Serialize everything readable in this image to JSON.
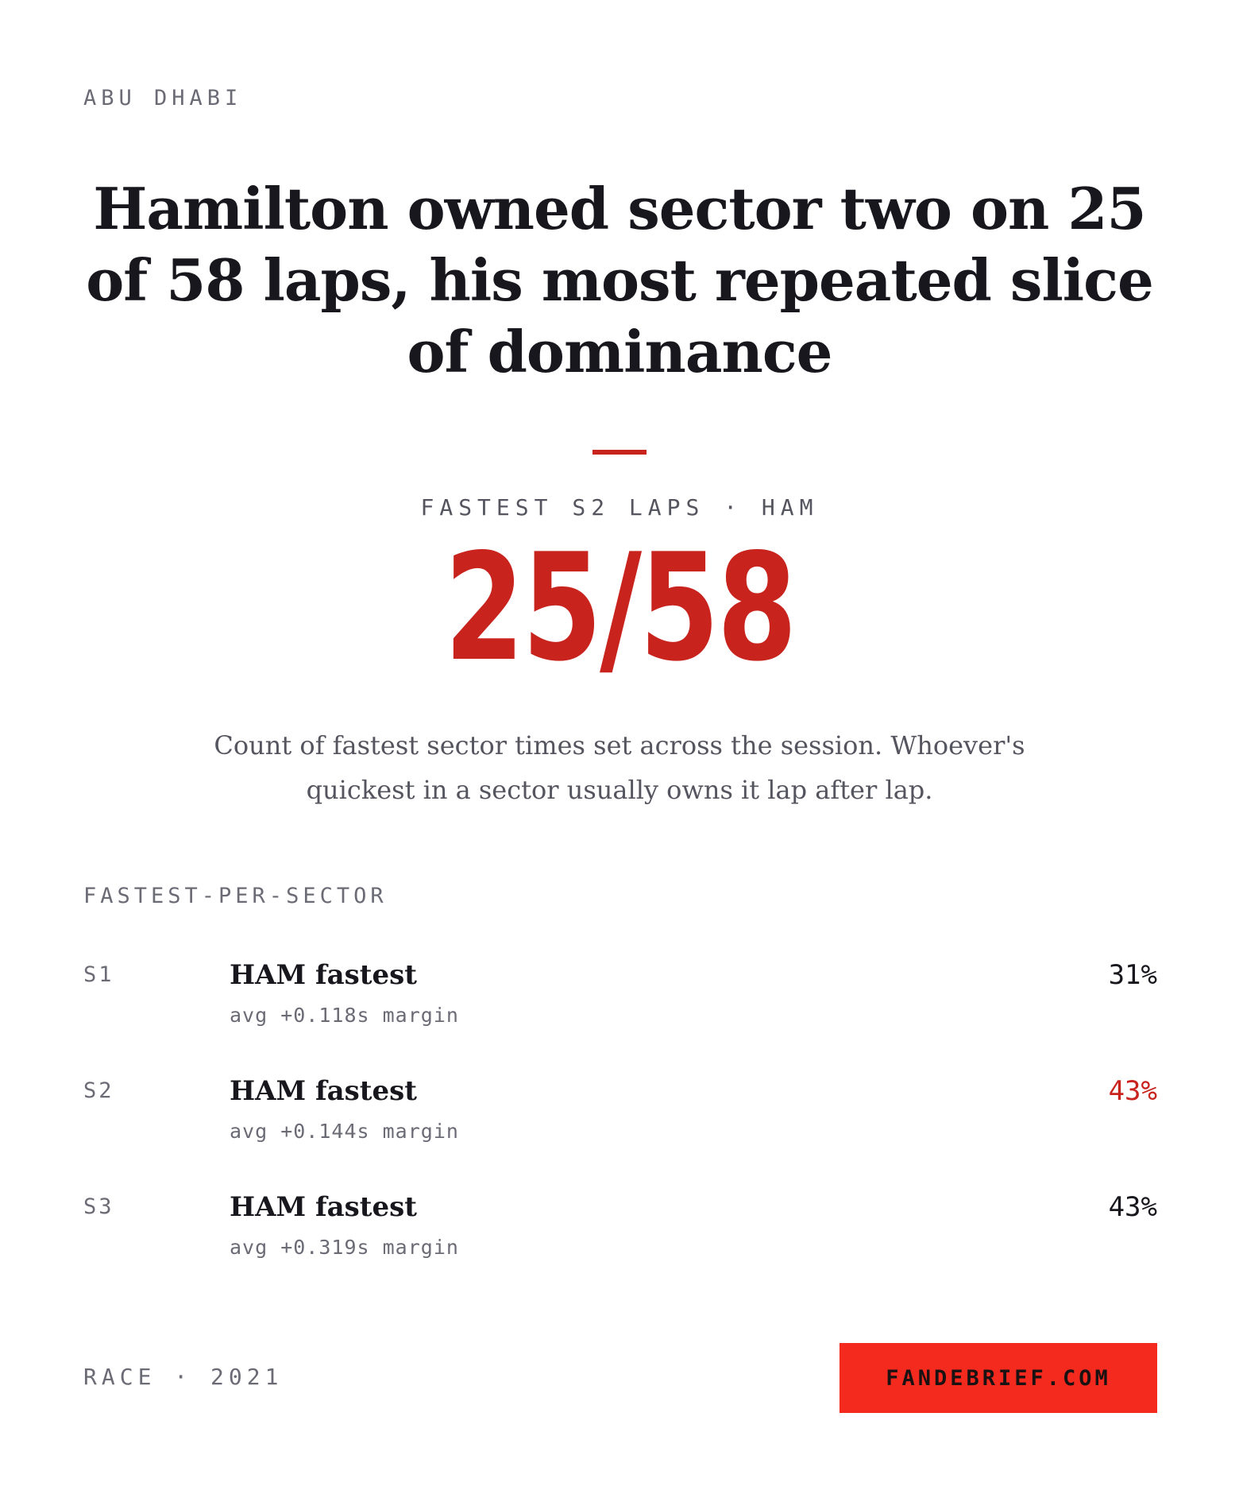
{
  "header": {
    "location": "ABU DHABI",
    "headline": "Hamilton owned sector two on 25 of 58 laps, his most repeated slice of dominance"
  },
  "stat": {
    "label": "FASTEST S2 LAPS · HAM",
    "value": "25/58",
    "description": "Count of fastest sector times set across the session. Whoever's quickest in a sector usually owns it lap after lap."
  },
  "sectors": {
    "title": "FASTEST-PER-SECTOR",
    "rows": [
      {
        "code": "S1",
        "driver": "HAM fastest",
        "margin": "avg +0.118s margin",
        "pct": "31%"
      },
      {
        "code": "S2",
        "driver": "HAM fastest",
        "margin": "avg +0.144s margin",
        "pct": "43%"
      },
      {
        "code": "S3",
        "driver": "HAM fastest",
        "margin": "avg +0.319s margin",
        "pct": "43%"
      }
    ]
  },
  "footer": {
    "session": "RACE · 2021",
    "site": "FANDEBRIEF.COM"
  },
  "colors": {
    "accent": "#c8231d",
    "cta_background": "#f52a1f",
    "text": "#17171d",
    "muted": "#6b6b76"
  }
}
